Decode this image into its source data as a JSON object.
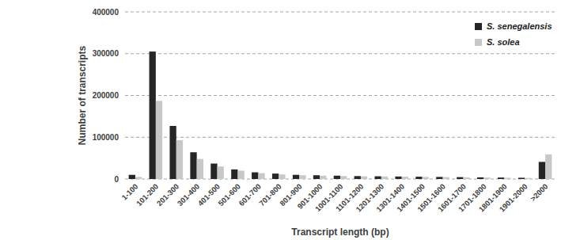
{
  "chart_data": {
    "type": "bar",
    "x_label": "Transcript length (bp)",
    "y_label": "Number of transcripts",
    "categories": [
      "1-100",
      "101-200",
      "201-300",
      "301-400",
      "401-500",
      "501-600",
      "601-700",
      "701-800",
      "801-900",
      "901-1000",
      "1001-1100",
      "1101-1200",
      "1201-1300",
      "1301-1400",
      "1401-1500",
      "1501-1600",
      "1601-1700",
      "1701-1800",
      "1801-1900",
      "1901-2000",
      ">2000"
    ],
    "series": [
      {
        "name": "S. senegalensis",
        "color": "#262626",
        "values": [
          10000,
          305000,
          127000,
          64000,
          37000,
          23000,
          16000,
          13000,
          10000,
          9000,
          8000,
          7000,
          6500,
          6000,
          5500,
          5000,
          4500,
          4000,
          3500,
          3000,
          41000
        ]
      },
      {
        "name": "S. solea",
        "color": "#c8c8c8",
        "values": [
          5000,
          187000,
          93000,
          48000,
          30000,
          20000,
          14000,
          11000,
          9000,
          8000,
          7000,
          6500,
          6000,
          5500,
          5000,
          4500,
          4000,
          3500,
          3000,
          2500,
          59000
        ]
      }
    ],
    "ylim": [
      0,
      400000
    ],
    "yticks": [
      0,
      100000,
      200000,
      300000,
      400000
    ],
    "grid": true,
    "legend": "upper right"
  }
}
